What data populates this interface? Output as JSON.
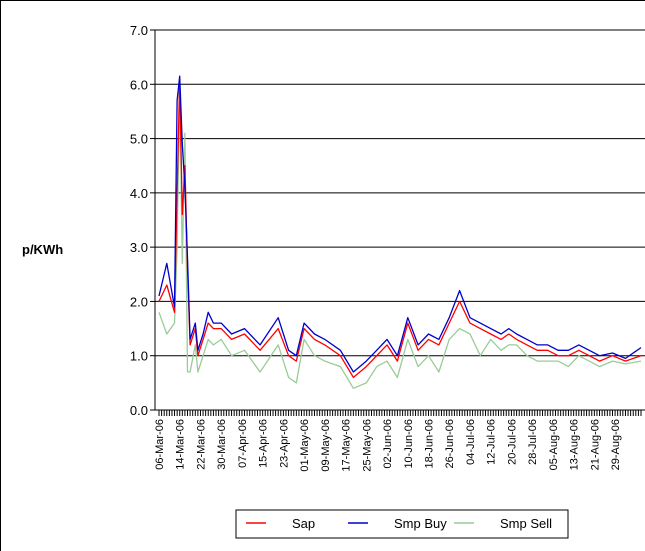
{
  "chart_data": {
    "type": "line",
    "ylabel": "p/KWh",
    "ylim": [
      0,
      7
    ],
    "yticks": [
      "0.0",
      "1.0",
      "2.0",
      "3.0",
      "4.0",
      "5.0",
      "6.0",
      "7.0"
    ],
    "grid": "horizontal",
    "legend_position": "bottom",
    "x_labels": [
      "06-Mar-06",
      "14-Mar-06",
      "22-Mar-06",
      "30-Mar-06",
      "07-Apr-06",
      "15-Apr-06",
      "23-Apr-06",
      "01-May-06",
      "09-May-06",
      "17-May-06",
      "25-May-06",
      "02-Jun-06",
      "10-Jun-06",
      "18-Jun-06",
      "26-Jun-06",
      "04-Jul-06",
      "12-Jul-06",
      "20-Jul-06",
      "28-Jul-06",
      "05-Aug-06",
      "13-Aug-06",
      "21-Aug-06",
      "29-Aug-06"
    ],
    "x_key_days": [
      0,
      3,
      6,
      7,
      8,
      9,
      10,
      11,
      12,
      14,
      15,
      17,
      19,
      21,
      24,
      28,
      33,
      39,
      46,
      50,
      53,
      56,
      60,
      64,
      70,
      75,
      80,
      84,
      88,
      92,
      96,
      100,
      104,
      108,
      112,
      116,
      120,
      124,
      128,
      132,
      135,
      138,
      142,
      146,
      150,
      154,
      158,
      162,
      166,
      170,
      175,
      180,
      186
    ],
    "series": [
      {
        "name": "Sap",
        "color": "#ff0000",
        "values": [
          2.0,
          2.3,
          1.8,
          4.0,
          6.1,
          3.6,
          4.5,
          2.6,
          1.2,
          1.5,
          1.0,
          1.3,
          1.6,
          1.5,
          1.5,
          1.3,
          1.4,
          1.1,
          1.5,
          1.0,
          0.9,
          1.5,
          1.3,
          1.2,
          1.0,
          0.6,
          0.8,
          1.0,
          1.2,
          0.9,
          1.6,
          1.1,
          1.3,
          1.2,
          1.6,
          2.0,
          1.6,
          1.5,
          1.4,
          1.3,
          1.4,
          1.3,
          1.2,
          1.1,
          1.1,
          1.0,
          1.0,
          1.1,
          1.0,
          0.9,
          1.0,
          0.9,
          1.0
        ]
      },
      {
        "name": "Smp Buy",
        "color": "#0000cc",
        "values": [
          2.1,
          2.7,
          1.9,
          5.7,
          6.15,
          4.9,
          4.1,
          2.8,
          1.3,
          1.6,
          1.1,
          1.4,
          1.8,
          1.6,
          1.6,
          1.4,
          1.5,
          1.2,
          1.7,
          1.1,
          1.0,
          1.6,
          1.4,
          1.3,
          1.1,
          0.7,
          0.9,
          1.1,
          1.3,
          1.0,
          1.7,
          1.2,
          1.4,
          1.3,
          1.7,
          2.2,
          1.7,
          1.6,
          1.5,
          1.4,
          1.5,
          1.4,
          1.3,
          1.2,
          1.2,
          1.1,
          1.1,
          1.2,
          1.1,
          1.0,
          1.05,
          0.95,
          1.15
        ]
      },
      {
        "name": "Smp Sell",
        "color": "#99cc99",
        "values": [
          1.8,
          1.4,
          1.6,
          3.0,
          6.0,
          2.7,
          5.1,
          0.7,
          0.7,
          1.2,
          0.7,
          1.0,
          1.3,
          1.2,
          1.3,
          1.0,
          1.1,
          0.7,
          1.2,
          0.6,
          0.5,
          1.3,
          1.0,
          0.9,
          0.8,
          0.4,
          0.5,
          0.8,
          0.9,
          0.6,
          1.3,
          0.8,
          1.0,
          0.7,
          1.3,
          1.5,
          1.4,
          1.0,
          1.3,
          1.1,
          1.2,
          1.2,
          1.0,
          0.9,
          0.9,
          0.9,
          0.8,
          1.0,
          0.9,
          0.8,
          0.9,
          0.85,
          0.9
        ]
      }
    ]
  }
}
